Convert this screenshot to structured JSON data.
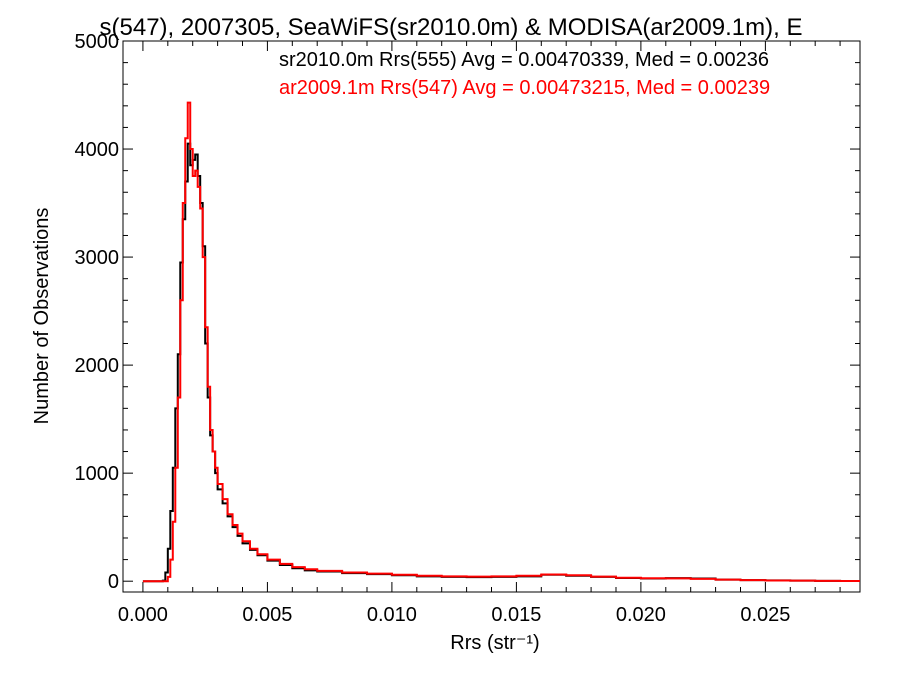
{
  "chart_data": {
    "type": "histogram",
    "title": "s(547), 2007305, SeaWiFS(sr2010.0m) & MODISA(ar2009.1m), E",
    "xlabel": "Rrs (str⁻¹)",
    "ylabel": "Number of Observations",
    "xlim": [
      -0.0008,
      0.0288
    ],
    "ylim": [
      -100,
      5000
    ],
    "x_ticks": [
      0.0,
      0.005,
      0.01,
      0.015,
      0.02,
      0.025
    ],
    "x_tick_labels": [
      "0.000",
      "0.005",
      "0.010",
      "0.015",
      "0.020",
      "0.025"
    ],
    "y_ticks": [
      0,
      1000,
      2000,
      3000,
      4000,
      5000
    ],
    "y_tick_labels": [
      "0",
      "1000",
      "2000",
      "3000",
      "4000",
      "5000"
    ],
    "grid": false,
    "legend_position": "top-right",
    "series": [
      {
        "name": "sr2010.0m Rrs(555) Avg = 0.00470339, Med = 0.00236",
        "color": "#000000",
        "points": [
          [
            0.0,
            0
          ],
          [
            0.0008,
            5
          ],
          [
            0.0009,
            80
          ],
          [
            0.001,
            300
          ],
          [
            0.0011,
            650
          ],
          [
            0.0012,
            1050
          ],
          [
            0.0013,
            1600
          ],
          [
            0.0014,
            2100
          ],
          [
            0.0015,
            2950
          ],
          [
            0.0016,
            3350
          ],
          [
            0.0017,
            3700
          ],
          [
            0.0018,
            4050
          ],
          [
            0.0019,
            3850
          ],
          [
            0.002,
            3900
          ],
          [
            0.0021,
            3950
          ],
          [
            0.0022,
            3750
          ],
          [
            0.0023,
            3500
          ],
          [
            0.0024,
            3100
          ],
          [
            0.0025,
            2200
          ],
          [
            0.0026,
            1700
          ],
          [
            0.0027,
            1350
          ],
          [
            0.0028,
            1200
          ],
          [
            0.0029,
            1000
          ],
          [
            0.003,
            850
          ],
          [
            0.0032,
            720
          ],
          [
            0.0034,
            600
          ],
          [
            0.0036,
            500
          ],
          [
            0.0038,
            420
          ],
          [
            0.004,
            350
          ],
          [
            0.0043,
            290
          ],
          [
            0.0046,
            240
          ],
          [
            0.005,
            190
          ],
          [
            0.0055,
            150
          ],
          [
            0.006,
            120
          ],
          [
            0.0065,
            100
          ],
          [
            0.007,
            90
          ],
          [
            0.008,
            75
          ],
          [
            0.009,
            65
          ],
          [
            0.01,
            55
          ],
          [
            0.011,
            45
          ],
          [
            0.012,
            40
          ],
          [
            0.013,
            38
          ],
          [
            0.014,
            40
          ],
          [
            0.015,
            45
          ],
          [
            0.016,
            60
          ],
          [
            0.017,
            50
          ],
          [
            0.018,
            40
          ],
          [
            0.019,
            30
          ],
          [
            0.02,
            25
          ],
          [
            0.021,
            28
          ],
          [
            0.022,
            25
          ],
          [
            0.023,
            15
          ],
          [
            0.024,
            10
          ],
          [
            0.025,
            8
          ],
          [
            0.026,
            5
          ],
          [
            0.027,
            3
          ],
          [
            0.028,
            2
          ]
        ]
      },
      {
        "name": "ar2009.1m Rrs(547) Avg = 0.00473215, Med = 0.00239",
        "color": "#ff0000",
        "points": [
          [
            0.0,
            0
          ],
          [
            0.0009,
            0
          ],
          [
            0.001,
            40
          ],
          [
            0.0011,
            200
          ],
          [
            0.0012,
            550
          ],
          [
            0.0013,
            1050
          ],
          [
            0.0014,
            1700
          ],
          [
            0.0015,
            2600
          ],
          [
            0.0016,
            3500
          ],
          [
            0.0017,
            4100
          ],
          [
            0.0018,
            4430
          ],
          [
            0.0019,
            4000
          ],
          [
            0.002,
            3750
          ],
          [
            0.0021,
            3800
          ],
          [
            0.0022,
            3650
          ],
          [
            0.0023,
            3450
          ],
          [
            0.0024,
            3000
          ],
          [
            0.0025,
            2350
          ],
          [
            0.0026,
            1800
          ],
          [
            0.0027,
            1400
          ],
          [
            0.0028,
            1200
          ],
          [
            0.0029,
            1050
          ],
          [
            0.003,
            900
          ],
          [
            0.0032,
            760
          ],
          [
            0.0034,
            620
          ],
          [
            0.0036,
            520
          ],
          [
            0.0038,
            440
          ],
          [
            0.004,
            370
          ],
          [
            0.0043,
            300
          ],
          [
            0.0046,
            250
          ],
          [
            0.005,
            200
          ],
          [
            0.0055,
            160
          ],
          [
            0.006,
            130
          ],
          [
            0.0065,
            110
          ],
          [
            0.007,
            95
          ],
          [
            0.008,
            80
          ],
          [
            0.009,
            70
          ],
          [
            0.01,
            60
          ],
          [
            0.011,
            50
          ],
          [
            0.012,
            45
          ],
          [
            0.013,
            42
          ],
          [
            0.014,
            45
          ],
          [
            0.015,
            50
          ],
          [
            0.016,
            62
          ],
          [
            0.017,
            55
          ],
          [
            0.018,
            42
          ],
          [
            0.019,
            32
          ],
          [
            0.02,
            27
          ],
          [
            0.021,
            26
          ],
          [
            0.022,
            22
          ],
          [
            0.023,
            14
          ],
          [
            0.024,
            10
          ],
          [
            0.025,
            7
          ],
          [
            0.026,
            5
          ],
          [
            0.027,
            3
          ],
          [
            0.028,
            2
          ]
        ]
      }
    ]
  }
}
